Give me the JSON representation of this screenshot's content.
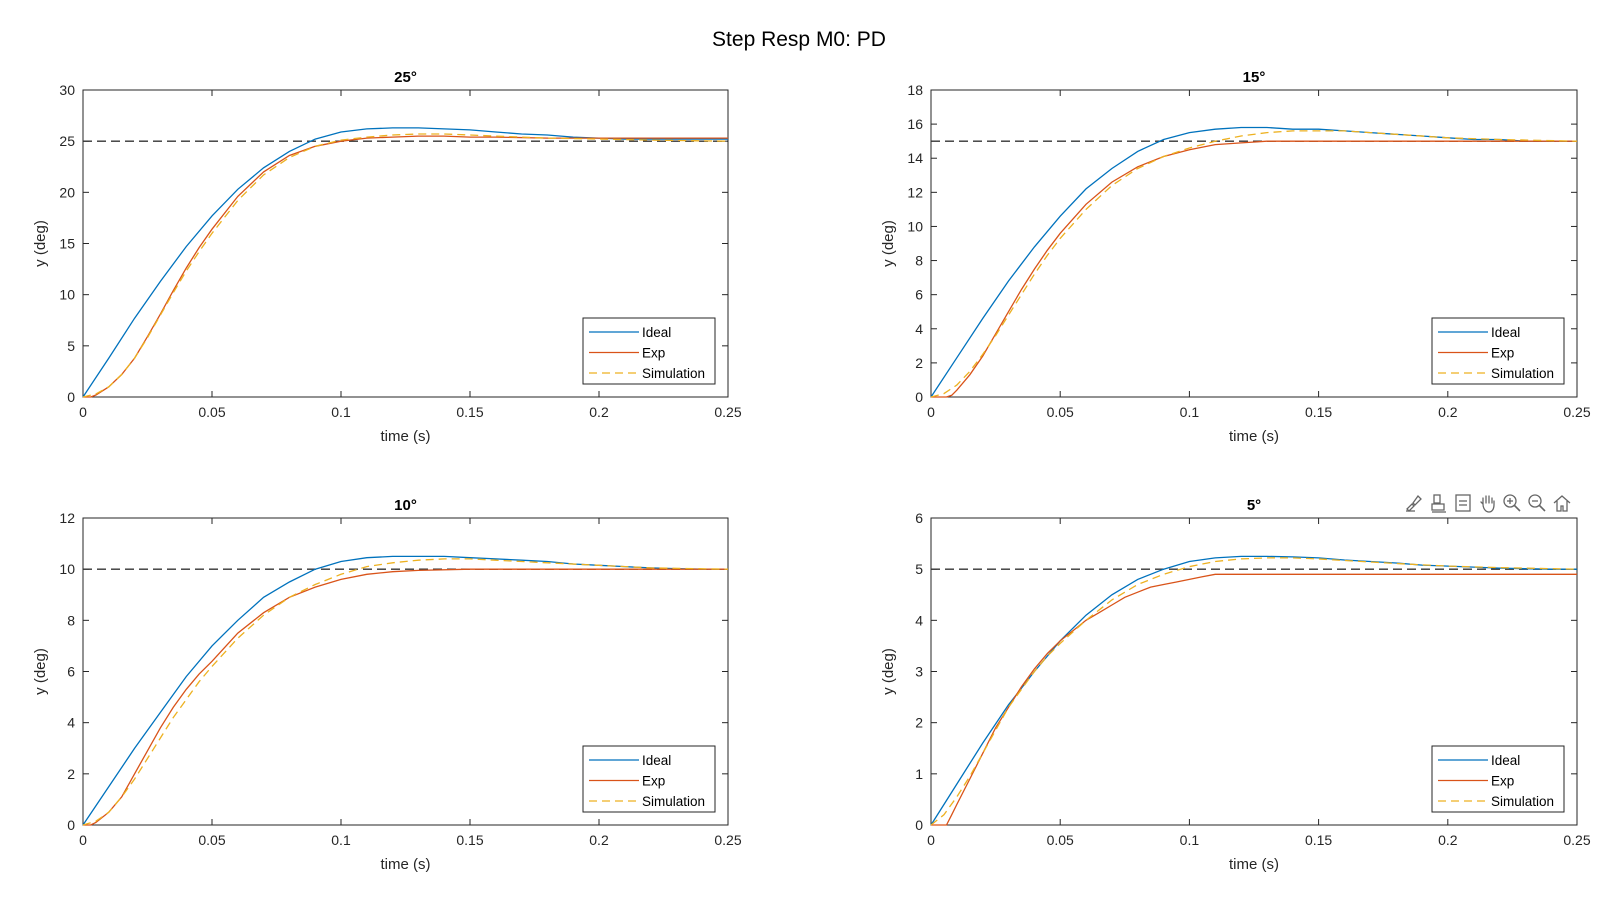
{
  "figure": {
    "title": "Step Resp M0: PD",
    "colors": {
      "ideal": "#0072BD",
      "exp": "#D95319",
      "simulation": "#EDB120",
      "reference": "#333333"
    },
    "toolbar": {
      "icons": [
        "brush-icon",
        "data-cursor-icon",
        "restore-icon",
        "pan-icon",
        "zoom-in-icon",
        "zoom-out-icon",
        "home-icon"
      ]
    }
  },
  "chart_data": [
    {
      "type": "line",
      "title": "25°",
      "xlabel": "time (s)",
      "ylabel": "y (deg)",
      "xlim": [
        0,
        0.25
      ],
      "ylim": [
        0,
        30
      ],
      "xticks": [
        0,
        0.05,
        0.1,
        0.15,
        0.2,
        0.25
      ],
      "xtick_labels": [
        "0",
        "0.05",
        "0.1",
        "0.15",
        "0.2",
        "0.25"
      ],
      "yticks": [
        0,
        5,
        10,
        15,
        20,
        25,
        30
      ],
      "ytick_labels": [
        "0",
        "5",
        "10",
        "15",
        "20",
        "25",
        "30"
      ],
      "reference": 25,
      "legend_position": "bottom-right",
      "legend": [
        "Ideal",
        "Exp",
        "Simulation"
      ],
      "series": [
        {
          "name": "Ideal",
          "x": [
            0,
            0.01,
            0.02,
            0.03,
            0.04,
            0.05,
            0.06,
            0.07,
            0.08,
            0.09,
            0.1,
            0.11,
            0.12,
            0.13,
            0.14,
            0.15,
            0.16,
            0.17,
            0.18,
            0.19,
            0.2,
            0.21,
            0.22,
            0.23,
            0.24,
            0.25
          ],
          "y": [
            0,
            3.8,
            7.7,
            11.3,
            14.7,
            17.7,
            20.3,
            22.4,
            24.0,
            25.2,
            25.9,
            26.2,
            26.3,
            26.3,
            26.2,
            26.1,
            25.9,
            25.7,
            25.6,
            25.4,
            25.3,
            25.2,
            25.2,
            25.2,
            25.2,
            25.2
          ]
        },
        {
          "name": "Exp",
          "x": [
            0,
            0.003,
            0.005,
            0.01,
            0.015,
            0.02,
            0.025,
            0.03,
            0.035,
            0.04,
            0.045,
            0.05,
            0.06,
            0.07,
            0.08,
            0.09,
            0.1,
            0.11,
            0.12,
            0.13,
            0.14,
            0.15,
            0.16,
            0.18,
            0.2,
            0.22,
            0.25
          ],
          "y": [
            0,
            0,
            0.2,
            1.0,
            2.2,
            3.8,
            5.9,
            8.1,
            10.4,
            12.6,
            14.6,
            16.4,
            19.6,
            22.0,
            23.6,
            24.5,
            25.0,
            25.3,
            25.4,
            25.5,
            25.5,
            25.4,
            25.4,
            25.3,
            25.3,
            25.3,
            25.3
          ]
        },
        {
          "name": "Simulation",
          "x": [
            0,
            0.005,
            0.01,
            0.015,
            0.02,
            0.025,
            0.03,
            0.035,
            0.04,
            0.045,
            0.05,
            0.06,
            0.07,
            0.08,
            0.09,
            0.1,
            0.11,
            0.12,
            0.13,
            0.14,
            0.15,
            0.16,
            0.17,
            0.18,
            0.2,
            0.22,
            0.25
          ],
          "y": [
            0,
            0.3,
            1.0,
            2.2,
            3.8,
            5.8,
            8.0,
            10.2,
            12.3,
            14.2,
            16.0,
            19.2,
            21.7,
            23.4,
            24.5,
            25.1,
            25.4,
            25.6,
            25.7,
            25.7,
            25.6,
            25.5,
            25.4,
            25.3,
            25.2,
            25.1,
            25.0
          ]
        }
      ]
    },
    {
      "type": "line",
      "title": "15°",
      "xlabel": "time (s)",
      "ylabel": "y (deg)",
      "xlim": [
        0,
        0.25
      ],
      "ylim": [
        0,
        18
      ],
      "xticks": [
        0,
        0.05,
        0.1,
        0.15,
        0.2,
        0.25
      ],
      "xtick_labels": [
        "0",
        "0.05",
        "0.1",
        "0.15",
        "0.2",
        "0.25"
      ],
      "yticks": [
        0,
        2,
        4,
        6,
        8,
        10,
        12,
        14,
        16,
        18
      ],
      "ytick_labels": [
        "0",
        "2",
        "4",
        "6",
        "8",
        "10",
        "12",
        "14",
        "16",
        "18"
      ],
      "reference": 15,
      "legend_position": "bottom-right",
      "legend": [
        "Ideal",
        "Exp",
        "Simulation"
      ],
      "series": [
        {
          "name": "Ideal",
          "x": [
            0,
            0.01,
            0.02,
            0.03,
            0.04,
            0.05,
            0.06,
            0.07,
            0.08,
            0.09,
            0.1,
            0.11,
            0.12,
            0.13,
            0.14,
            0.15,
            0.16,
            0.17,
            0.18,
            0.19,
            0.2,
            0.21,
            0.22,
            0.23,
            0.24,
            0.25
          ],
          "y": [
            0,
            2.3,
            4.6,
            6.8,
            8.8,
            10.6,
            12.2,
            13.4,
            14.4,
            15.1,
            15.5,
            15.7,
            15.8,
            15.8,
            15.7,
            15.7,
            15.6,
            15.5,
            15.4,
            15.3,
            15.2,
            15.1,
            15.1,
            15.0,
            15.0,
            15.0
          ]
        },
        {
          "name": "Exp",
          "x": [
            0,
            0.006,
            0.008,
            0.01,
            0.015,
            0.02,
            0.025,
            0.03,
            0.035,
            0.04,
            0.045,
            0.05,
            0.06,
            0.07,
            0.08,
            0.09,
            0.1,
            0.11,
            0.12,
            0.13,
            0.14,
            0.15,
            0.16,
            0.18,
            0.2,
            0.22,
            0.25
          ],
          "y": [
            0,
            0,
            0.1,
            0.4,
            1.3,
            2.4,
            3.7,
            5.0,
            6.3,
            7.5,
            8.6,
            9.6,
            11.3,
            12.6,
            13.5,
            14.1,
            14.5,
            14.8,
            14.9,
            15.0,
            15.0,
            15.0,
            15.0,
            15.0,
            15.0,
            15.0,
            15.0
          ]
        },
        {
          "name": "Simulation",
          "x": [
            0,
            0.005,
            0.01,
            0.015,
            0.02,
            0.025,
            0.03,
            0.035,
            0.04,
            0.045,
            0.05,
            0.06,
            0.07,
            0.08,
            0.09,
            0.1,
            0.11,
            0.12,
            0.13,
            0.14,
            0.15,
            0.16,
            0.17,
            0.18,
            0.2,
            0.22,
            0.25
          ],
          "y": [
            0,
            0.2,
            0.7,
            1.5,
            2.5,
            3.6,
            4.8,
            6.0,
            7.2,
            8.3,
            9.3,
            11.0,
            12.4,
            13.4,
            14.1,
            14.6,
            15.0,
            15.3,
            15.5,
            15.6,
            15.6,
            15.6,
            15.5,
            15.4,
            15.2,
            15.1,
            15.0
          ]
        }
      ]
    },
    {
      "type": "line",
      "title": "10°",
      "xlabel": "time (s)",
      "ylabel": "y (deg)",
      "xlim": [
        0,
        0.25
      ],
      "ylim": [
        0,
        12
      ],
      "xticks": [
        0,
        0.05,
        0.1,
        0.15,
        0.2,
        0.25
      ],
      "xtick_labels": [
        "0",
        "0.05",
        "0.1",
        "0.15",
        "0.2",
        "0.25"
      ],
      "yticks": [
        0,
        2,
        4,
        6,
        8,
        10,
        12
      ],
      "ytick_labels": [
        "0",
        "2",
        "4",
        "6",
        "8",
        "10",
        "12"
      ],
      "reference": 10,
      "legend_position": "bottom-right",
      "legend": [
        "Ideal",
        "Exp",
        "Simulation"
      ],
      "series": [
        {
          "name": "Ideal",
          "x": [
            0,
            0.01,
            0.02,
            0.03,
            0.04,
            0.05,
            0.06,
            0.07,
            0.08,
            0.09,
            0.1,
            0.11,
            0.12,
            0.13,
            0.14,
            0.15,
            0.16,
            0.17,
            0.18,
            0.19,
            0.2,
            0.21,
            0.22,
            0.23,
            0.24,
            0.25
          ],
          "y": [
            0,
            1.5,
            3.0,
            4.4,
            5.8,
            7.0,
            8.0,
            8.9,
            9.5,
            10.0,
            10.3,
            10.45,
            10.5,
            10.5,
            10.5,
            10.45,
            10.4,
            10.35,
            10.3,
            10.2,
            10.15,
            10.1,
            10.05,
            10.02,
            10.0,
            10.0
          ]
        },
        {
          "name": "Exp",
          "x": [
            0,
            0.003,
            0.005,
            0.01,
            0.015,
            0.02,
            0.025,
            0.03,
            0.035,
            0.04,
            0.045,
            0.05,
            0.06,
            0.07,
            0.08,
            0.09,
            0.1,
            0.11,
            0.12,
            0.13,
            0.15,
            0.18,
            0.2,
            0.25
          ],
          "y": [
            0,
            0,
            0.1,
            0.5,
            1.1,
            2.0,
            2.9,
            3.8,
            4.6,
            5.3,
            5.9,
            6.4,
            7.5,
            8.3,
            8.9,
            9.3,
            9.6,
            9.8,
            9.9,
            9.95,
            10.0,
            10.0,
            10.0,
            10.0
          ]
        },
        {
          "name": "Simulation",
          "x": [
            0,
            0.005,
            0.01,
            0.015,
            0.02,
            0.025,
            0.03,
            0.035,
            0.04,
            0.045,
            0.05,
            0.06,
            0.07,
            0.08,
            0.09,
            0.1,
            0.11,
            0.12,
            0.13,
            0.14,
            0.15,
            0.16,
            0.17,
            0.18,
            0.2,
            0.22,
            0.25
          ],
          "y": [
            0,
            0.15,
            0.5,
            1.1,
            1.8,
            2.6,
            3.4,
            4.2,
            4.9,
            5.6,
            6.2,
            7.3,
            8.2,
            8.9,
            9.4,
            9.8,
            10.1,
            10.25,
            10.35,
            10.4,
            10.4,
            10.35,
            10.3,
            10.25,
            10.15,
            10.05,
            10.0
          ]
        }
      ]
    },
    {
      "type": "line",
      "title": "5°",
      "xlabel": "time (s)",
      "ylabel": "y (deg)",
      "xlim": [
        0,
        0.25
      ],
      "ylim": [
        0,
        6
      ],
      "xticks": [
        0,
        0.05,
        0.1,
        0.15,
        0.2,
        0.25
      ],
      "xtick_labels": [
        "0",
        "0.05",
        "0.1",
        "0.15",
        "0.2",
        "0.25"
      ],
      "yticks": [
        0,
        1,
        2,
        3,
        4,
        5,
        6
      ],
      "ytick_labels": [
        "0",
        "1",
        "2",
        "3",
        "4",
        "5",
        "6"
      ],
      "reference": 5,
      "legend_position": "bottom-right",
      "legend": [
        "Ideal",
        "Exp",
        "Simulation"
      ],
      "series": [
        {
          "name": "Ideal",
          "x": [
            0,
            0.01,
            0.02,
            0.03,
            0.04,
            0.05,
            0.06,
            0.07,
            0.08,
            0.09,
            0.1,
            0.11,
            0.12,
            0.13,
            0.14,
            0.15,
            0.16,
            0.17,
            0.18,
            0.19,
            0.2,
            0.21,
            0.22,
            0.23,
            0.24,
            0.25
          ],
          "y": [
            0,
            0.8,
            1.6,
            2.35,
            3.0,
            3.6,
            4.1,
            4.5,
            4.8,
            5.0,
            5.15,
            5.22,
            5.25,
            5.25,
            5.24,
            5.22,
            5.18,
            5.15,
            5.12,
            5.08,
            5.06,
            5.04,
            5.02,
            5.01,
            5.0,
            5.0
          ]
        },
        {
          "name": "Exp",
          "x": [
            0,
            0.006,
            0.008,
            0.01,
            0.015,
            0.02,
            0.025,
            0.03,
            0.035,
            0.04,
            0.045,
            0.05,
            0.055,
            0.06,
            0.065,
            0.07,
            0.075,
            0.08,
            0.085,
            0.09,
            0.095,
            0.1,
            0.105,
            0.11,
            0.15,
            0.2,
            0.25
          ],
          "y": [
            0,
            0,
            0.2,
            0.4,
            0.9,
            1.4,
            1.9,
            2.3,
            2.7,
            3.05,
            3.35,
            3.6,
            3.8,
            4.0,
            4.15,
            4.3,
            4.45,
            4.55,
            4.65,
            4.7,
            4.75,
            4.8,
            4.85,
            4.9,
            4.9,
            4.9,
            4.9
          ]
        },
        {
          "name": "Simulation",
          "x": [
            0,
            0.005,
            0.01,
            0.015,
            0.02,
            0.025,
            0.03,
            0.035,
            0.04,
            0.045,
            0.05,
            0.06,
            0.07,
            0.08,
            0.09,
            0.1,
            0.11,
            0.12,
            0.13,
            0.14,
            0.15,
            0.16,
            0.17,
            0.18,
            0.2,
            0.22,
            0.25
          ],
          "y": [
            0,
            0.2,
            0.55,
            0.95,
            1.4,
            1.85,
            2.3,
            2.65,
            3.0,
            3.3,
            3.55,
            4.0,
            4.4,
            4.7,
            4.9,
            5.05,
            5.15,
            5.2,
            5.22,
            5.22,
            5.2,
            5.17,
            5.14,
            5.11,
            5.06,
            5.03,
            5.0
          ]
        }
      ]
    }
  ]
}
